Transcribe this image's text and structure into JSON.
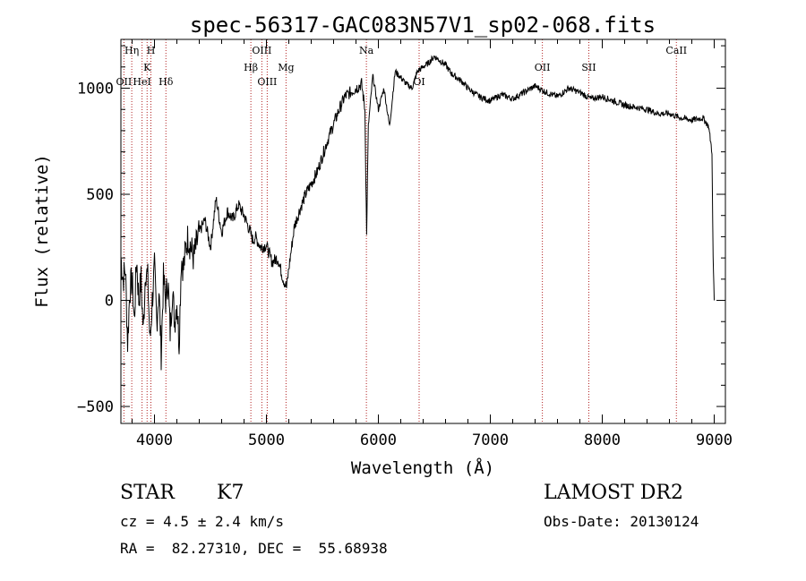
{
  "chart_data": {
    "type": "line",
    "title": "spec-56317-GAC083N57V1_sp02-068.fits",
    "xlabel": "Wavelength (Å)",
    "ylabel": "Flux (relative)",
    "xlim": [
      3700,
      9100
    ],
    "ylim": [
      -580,
      1230
    ],
    "x_ticks": [
      {
        "value": 4000,
        "label": "4000"
      },
      {
        "value": 5000,
        "label": "5000"
      },
      {
        "value": 6000,
        "label": "6000"
      },
      {
        "value": 7000,
        "label": "7000"
      },
      {
        "value": 8000,
        "label": "8000"
      },
      {
        "value": 9000,
        "label": "9000"
      }
    ],
    "y_ticks": [
      {
        "value": -500,
        "label": "−500"
      },
      {
        "value": 0,
        "label": "0"
      },
      {
        "value": 500,
        "label": "500"
      },
      {
        "value": 1000,
        "label": "1000"
      }
    ],
    "line_color": "#000000",
    "marker_color": "#b22222",
    "lines": [
      {
        "x": 3727,
        "label": "OII",
        "row": 3
      },
      {
        "x": 3797,
        "label": "Hη",
        "row": 1
      },
      {
        "x": 3889,
        "label": "HeI",
        "row": 3
      },
      {
        "x": 3934,
        "label": "K",
        "row": 2
      },
      {
        "x": 3968,
        "label": "H",
        "row": 1
      },
      {
        "x": 4102,
        "label": "Hδ",
        "row": 3
      },
      {
        "x": 4861,
        "label": "Hβ",
        "row": 2
      },
      {
        "x": 4959,
        "label": "OIII",
        "row": 1
      },
      {
        "x": 5007,
        "label": "OIII",
        "row": 3
      },
      {
        "x": 5175,
        "label": "Mg",
        "row": 2
      },
      {
        "x": 5893,
        "label": "Na",
        "row": 1
      },
      {
        "x": 6364,
        "label": "OI",
        "row": 3
      },
      {
        "x": 7465,
        "label": "OII",
        "row": 2
      },
      {
        "x": 7880,
        "label": "SII",
        "row": 2
      },
      {
        "x": 8662,
        "label": "CaII",
        "row": 1
      }
    ],
    "series": [
      {
        "x": [
          3700,
          3720,
          3740,
          3760,
          3780,
          3800,
          3820,
          3840,
          3860,
          3880,
          3900,
          3920,
          3940,
          3960,
          3980,
          4000,
          4020,
          4040,
          4060,
          4080,
          4100,
          4120,
          4140,
          4160,
          4180,
          4200,
          4220,
          4240,
          4260,
          4280,
          4300,
          4350,
          4400,
          4450,
          4500,
          4550,
          4600,
          4650,
          4700,
          4750,
          4800,
          4850,
          4880,
          4900,
          4950,
          5000,
          5050,
          5100,
          5150,
          5180,
          5200,
          5250,
          5300,
          5350,
          5400,
          5450,
          5500,
          5550,
          5600,
          5650,
          5700,
          5750,
          5800,
          5850,
          5880,
          5895,
          5910,
          5950,
          6000,
          6050,
          6100,
          6150,
          6200,
          6250,
          6300,
          6350,
          6400,
          6450,
          6500,
          6550,
          6600,
          6650,
          6700,
          6750,
          6800,
          6900,
          7000,
          7100,
          7200,
          7300,
          7400,
          7500,
          7600,
          7700,
          7800,
          7900,
          8000,
          8100,
          8200,
          8300,
          8400,
          8500,
          8600,
          8700,
          8800,
          8900,
          8950,
          8980,
          8990,
          9000
        ],
        "y": [
          200,
          100,
          150,
          -200,
          50,
          100,
          -100,
          200,
          0,
          100,
          -150,
          150,
          100,
          -200,
          0,
          150,
          -100,
          50,
          -250,
          100,
          0,
          100,
          -150,
          50,
          -100,
          0,
          -200,
          200,
          150,
          250,
          300,
          200,
          320,
          380,
          250,
          480,
          320,
          420,
          380,
          450,
          400,
          330,
          280,
          300,
          250,
          260,
          180,
          200,
          100,
          60,
          150,
          350,
          430,
          500,
          550,
          600,
          680,
          760,
          830,
          900,
          960,
          980,
          1000,
          1020,
          900,
          300,
          820,
          1060,
          900,
          1000,
          820,
          1080,
          1050,
          1020,
          1000,
          1080,
          1100,
          1120,
          1150,
          1130,
          1110,
          1070,
          1050,
          1030,
          1000,
          960,
          940,
          970,
          950,
          980,
          1010,
          980,
          960,
          1000,
          980,
          950,
          960,
          940,
          920,
          910,
          900,
          880,
          880,
          860,
          850,
          860,
          820,
          700,
          200,
          0
        ]
      }
    ]
  },
  "footer": {
    "object_type": "STAR",
    "subclass": "K7",
    "cz": "cz = 4.5 ± 2.4 km/s",
    "coords": "RA =  82.27310, DEC =  55.68938",
    "survey": "LAMOST DR2",
    "obs_date": "Obs-Date: 20130124"
  }
}
